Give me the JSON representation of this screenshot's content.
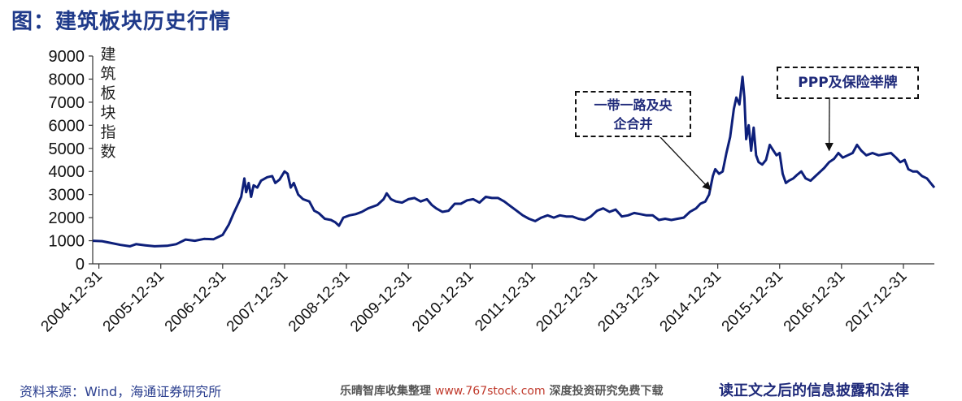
{
  "figure": {
    "title": "图：建筑板块历史行情"
  },
  "chart_data": {
    "type": "line",
    "ylabel": "建筑板块指数",
    "ylim": [
      0,
      9000
    ],
    "yticks": [
      0,
      1000,
      2000,
      3000,
      4000,
      5000,
      6000,
      7000,
      8000,
      9000
    ],
    "xlim": [
      2004.9,
      2018.5
    ],
    "xticks": [
      {
        "label": "2004-12-31",
        "x": 2005.0
      },
      {
        "label": "2005-12-31",
        "x": 2006.0
      },
      {
        "label": "2006-12-31",
        "x": 2007.0
      },
      {
        "label": "2007-12-31",
        "x": 2008.0
      },
      {
        "label": "2008-12-31",
        "x": 2009.0
      },
      {
        "label": "2009-12-31",
        "x": 2010.0
      },
      {
        "label": "2010-12-31",
        "x": 2011.0
      },
      {
        "label": "2011-12-31",
        "x": 2012.0
      },
      {
        "label": "2012-12-31",
        "x": 2013.0
      },
      {
        "label": "2013-12-31",
        "x": 2014.0
      },
      {
        "label": "2014-12-31",
        "x": 2015.0
      },
      {
        "label": "2015-12-31",
        "x": 2016.0
      },
      {
        "label": "2016-12-31",
        "x": 2017.0
      },
      {
        "label": "2017-12-31",
        "x": 2018.0
      }
    ],
    "series": [
      {
        "color": "#0d1f7a",
        "points": [
          [
            2004.9,
            1000
          ],
          [
            2005.05,
            980
          ],
          [
            2005.2,
            900
          ],
          [
            2005.35,
            820
          ],
          [
            2005.5,
            760
          ],
          [
            2005.6,
            850
          ],
          [
            2005.75,
            800
          ],
          [
            2005.9,
            760
          ],
          [
            2006.1,
            780
          ],
          [
            2006.25,
            850
          ],
          [
            2006.4,
            1050
          ],
          [
            2006.55,
            1000
          ],
          [
            2006.7,
            1080
          ],
          [
            2006.85,
            1060
          ],
          [
            2007.0,
            1250
          ],
          [
            2007.1,
            1700
          ],
          [
            2007.18,
            2200
          ],
          [
            2007.25,
            2600
          ],
          [
            2007.3,
            2900
          ],
          [
            2007.35,
            3700
          ],
          [
            2007.38,
            3100
          ],
          [
            2007.42,
            3500
          ],
          [
            2007.46,
            2900
          ],
          [
            2007.5,
            3400
          ],
          [
            2007.56,
            3300
          ],
          [
            2007.62,
            3600
          ],
          [
            2007.72,
            3750
          ],
          [
            2007.8,
            3800
          ],
          [
            2007.85,
            3500
          ],
          [
            2007.92,
            3650
          ],
          [
            2008.0,
            4000
          ],
          [
            2008.05,
            3900
          ],
          [
            2008.1,
            3300
          ],
          [
            2008.15,
            3500
          ],
          [
            2008.22,
            3000
          ],
          [
            2008.3,
            2800
          ],
          [
            2008.4,
            2700
          ],
          [
            2008.48,
            2300
          ],
          [
            2008.55,
            2200
          ],
          [
            2008.65,
            1950
          ],
          [
            2008.75,
            1900
          ],
          [
            2008.82,
            1800
          ],
          [
            2008.88,
            1650
          ],
          [
            2008.95,
            2000
          ],
          [
            2009.05,
            2100
          ],
          [
            2009.15,
            2150
          ],
          [
            2009.25,
            2250
          ],
          [
            2009.35,
            2400
          ],
          [
            2009.5,
            2550
          ],
          [
            2009.6,
            2800
          ],
          [
            2009.65,
            3050
          ],
          [
            2009.72,
            2800
          ],
          [
            2009.8,
            2700
          ],
          [
            2009.9,
            2650
          ],
          [
            2010.0,
            2800
          ],
          [
            2010.1,
            2850
          ],
          [
            2010.2,
            2700
          ],
          [
            2010.3,
            2800
          ],
          [
            2010.38,
            2550
          ],
          [
            2010.45,
            2400
          ],
          [
            2010.55,
            2250
          ],
          [
            2010.65,
            2300
          ],
          [
            2010.75,
            2600
          ],
          [
            2010.85,
            2600
          ],
          [
            2010.95,
            2750
          ],
          [
            2011.05,
            2800
          ],
          [
            2011.15,
            2650
          ],
          [
            2011.25,
            2900
          ],
          [
            2011.35,
            2850
          ],
          [
            2011.45,
            2850
          ],
          [
            2011.55,
            2700
          ],
          [
            2011.65,
            2500
          ],
          [
            2011.75,
            2300
          ],
          [
            2011.85,
            2100
          ],
          [
            2011.95,
            1950
          ],
          [
            2012.05,
            1850
          ],
          [
            2012.15,
            2000
          ],
          [
            2012.25,
            2100
          ],
          [
            2012.35,
            2000
          ],
          [
            2012.45,
            2100
          ],
          [
            2012.55,
            2050
          ],
          [
            2012.65,
            2050
          ],
          [
            2012.75,
            1950
          ],
          [
            2012.85,
            1900
          ],
          [
            2012.95,
            2050
          ],
          [
            2013.05,
            2300
          ],
          [
            2013.15,
            2400
          ],
          [
            2013.25,
            2250
          ],
          [
            2013.35,
            2350
          ],
          [
            2013.45,
            2050
          ],
          [
            2013.55,
            2100
          ],
          [
            2013.65,
            2200
          ],
          [
            2013.75,
            2150
          ],
          [
            2013.85,
            2100
          ],
          [
            2013.95,
            2100
          ],
          [
            2014.05,
            1900
          ],
          [
            2014.15,
            1950
          ],
          [
            2014.25,
            1900
          ],
          [
            2014.35,
            1950
          ],
          [
            2014.45,
            2000
          ],
          [
            2014.55,
            2250
          ],
          [
            2014.65,
            2400
          ],
          [
            2014.72,
            2600
          ],
          [
            2014.8,
            2700
          ],
          [
            2014.86,
            3000
          ],
          [
            2014.92,
            3800
          ],
          [
            2014.96,
            4100
          ],
          [
            2015.02,
            3900
          ],
          [
            2015.08,
            4000
          ],
          [
            2015.14,
            4800
          ],
          [
            2015.2,
            5500
          ],
          [
            2015.26,
            6700
          ],
          [
            2015.3,
            7200
          ],
          [
            2015.35,
            6900
          ],
          [
            2015.4,
            8100
          ],
          [
            2015.43,
            7200
          ],
          [
            2015.46,
            5400
          ],
          [
            2015.5,
            6000
          ],
          [
            2015.54,
            4900
          ],
          [
            2015.58,
            5900
          ],
          [
            2015.62,
            4700
          ],
          [
            2015.66,
            4400
          ],
          [
            2015.72,
            4300
          ],
          [
            2015.78,
            4500
          ],
          [
            2015.84,
            5150
          ],
          [
            2015.9,
            4900
          ],
          [
            2015.95,
            4700
          ],
          [
            2016.0,
            4800
          ],
          [
            2016.05,
            3900
          ],
          [
            2016.1,
            3500
          ],
          [
            2016.15,
            3600
          ],
          [
            2016.22,
            3700
          ],
          [
            2016.28,
            3850
          ],
          [
            2016.35,
            4000
          ],
          [
            2016.42,
            3700
          ],
          [
            2016.5,
            3600
          ],
          [
            2016.58,
            3800
          ],
          [
            2016.66,
            4000
          ],
          [
            2016.72,
            4150
          ],
          [
            2016.8,
            4400
          ],
          [
            2016.88,
            4550
          ],
          [
            2016.95,
            4800
          ],
          [
            2017.02,
            4600
          ],
          [
            2017.1,
            4700
          ],
          [
            2017.18,
            4800
          ],
          [
            2017.25,
            5150
          ],
          [
            2017.32,
            4900
          ],
          [
            2017.4,
            4700
          ],
          [
            2017.5,
            4800
          ],
          [
            2017.6,
            4700
          ],
          [
            2017.7,
            4750
          ],
          [
            2017.8,
            4800
          ],
          [
            2017.88,
            4600
          ],
          [
            2017.95,
            4400
          ],
          [
            2018.02,
            4500
          ],
          [
            2018.08,
            4100
          ],
          [
            2018.15,
            4000
          ],
          [
            2018.22,
            4000
          ],
          [
            2018.3,
            3800
          ],
          [
            2018.38,
            3700
          ],
          [
            2018.44,
            3500
          ],
          [
            2018.5,
            3300
          ]
        ]
      }
    ],
    "annotations": [
      {
        "text": "一带一路及央企合并",
        "target": [
          2014.88,
          3000
        ]
      },
      {
        "text": "PPP及保险举牌",
        "target": [
          2016.8,
          4700
        ]
      }
    ]
  },
  "source": "资料来源：Wind，海通证券研究所",
  "watermark": {
    "left": "乐晴智库收集整理 ",
    "url": "www.767stock.com",
    "right": " 深度投资研究免费下载"
  },
  "footer_right": "读正文之后的信息披露和法律"
}
